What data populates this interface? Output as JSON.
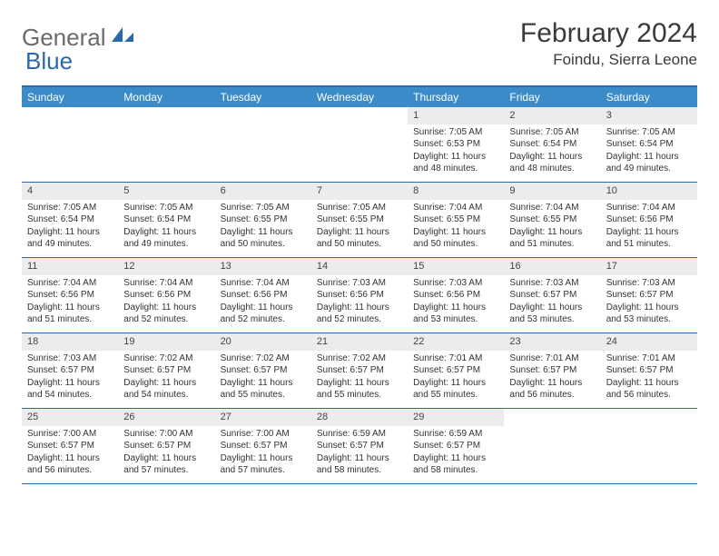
{
  "logo": {
    "text1": "General",
    "text2": "Blue",
    "color_gray": "#6b6b6b",
    "color_blue": "#2a6aa8"
  },
  "title": "February 2024",
  "location": "Foindu, Sierra Leone",
  "colors": {
    "header_bg": "#3b8bc8",
    "border": "#2a6aa8",
    "daynum_bg": "#ececec"
  },
  "weekdays": [
    "Sunday",
    "Monday",
    "Tuesday",
    "Wednesday",
    "Thursday",
    "Friday",
    "Saturday"
  ],
  "weeks": [
    [
      {
        "n": "",
        "sr": "",
        "ss": "",
        "dl": ""
      },
      {
        "n": "",
        "sr": "",
        "ss": "",
        "dl": ""
      },
      {
        "n": "",
        "sr": "",
        "ss": "",
        "dl": ""
      },
      {
        "n": "",
        "sr": "",
        "ss": "",
        "dl": ""
      },
      {
        "n": "1",
        "sr": "Sunrise: 7:05 AM",
        "ss": "Sunset: 6:53 PM",
        "dl": "Daylight: 11 hours and 48 minutes."
      },
      {
        "n": "2",
        "sr": "Sunrise: 7:05 AM",
        "ss": "Sunset: 6:54 PM",
        "dl": "Daylight: 11 hours and 48 minutes."
      },
      {
        "n": "3",
        "sr": "Sunrise: 7:05 AM",
        "ss": "Sunset: 6:54 PM",
        "dl": "Daylight: 11 hours and 49 minutes."
      }
    ],
    [
      {
        "n": "4",
        "sr": "Sunrise: 7:05 AM",
        "ss": "Sunset: 6:54 PM",
        "dl": "Daylight: 11 hours and 49 minutes."
      },
      {
        "n": "5",
        "sr": "Sunrise: 7:05 AM",
        "ss": "Sunset: 6:54 PM",
        "dl": "Daylight: 11 hours and 49 minutes."
      },
      {
        "n": "6",
        "sr": "Sunrise: 7:05 AM",
        "ss": "Sunset: 6:55 PM",
        "dl": "Daylight: 11 hours and 50 minutes."
      },
      {
        "n": "7",
        "sr": "Sunrise: 7:05 AM",
        "ss": "Sunset: 6:55 PM",
        "dl": "Daylight: 11 hours and 50 minutes."
      },
      {
        "n": "8",
        "sr": "Sunrise: 7:04 AM",
        "ss": "Sunset: 6:55 PM",
        "dl": "Daylight: 11 hours and 50 minutes."
      },
      {
        "n": "9",
        "sr": "Sunrise: 7:04 AM",
        "ss": "Sunset: 6:55 PM",
        "dl": "Daylight: 11 hours and 51 minutes."
      },
      {
        "n": "10",
        "sr": "Sunrise: 7:04 AM",
        "ss": "Sunset: 6:56 PM",
        "dl": "Daylight: 11 hours and 51 minutes."
      }
    ],
    [
      {
        "n": "11",
        "sr": "Sunrise: 7:04 AM",
        "ss": "Sunset: 6:56 PM",
        "dl": "Daylight: 11 hours and 51 minutes."
      },
      {
        "n": "12",
        "sr": "Sunrise: 7:04 AM",
        "ss": "Sunset: 6:56 PM",
        "dl": "Daylight: 11 hours and 52 minutes."
      },
      {
        "n": "13",
        "sr": "Sunrise: 7:04 AM",
        "ss": "Sunset: 6:56 PM",
        "dl": "Daylight: 11 hours and 52 minutes."
      },
      {
        "n": "14",
        "sr": "Sunrise: 7:03 AM",
        "ss": "Sunset: 6:56 PM",
        "dl": "Daylight: 11 hours and 52 minutes."
      },
      {
        "n": "15",
        "sr": "Sunrise: 7:03 AM",
        "ss": "Sunset: 6:56 PM",
        "dl": "Daylight: 11 hours and 53 minutes."
      },
      {
        "n": "16",
        "sr": "Sunrise: 7:03 AM",
        "ss": "Sunset: 6:57 PM",
        "dl": "Daylight: 11 hours and 53 minutes."
      },
      {
        "n": "17",
        "sr": "Sunrise: 7:03 AM",
        "ss": "Sunset: 6:57 PM",
        "dl": "Daylight: 11 hours and 53 minutes."
      }
    ],
    [
      {
        "n": "18",
        "sr": "Sunrise: 7:03 AM",
        "ss": "Sunset: 6:57 PM",
        "dl": "Daylight: 11 hours and 54 minutes."
      },
      {
        "n": "19",
        "sr": "Sunrise: 7:02 AM",
        "ss": "Sunset: 6:57 PM",
        "dl": "Daylight: 11 hours and 54 minutes."
      },
      {
        "n": "20",
        "sr": "Sunrise: 7:02 AM",
        "ss": "Sunset: 6:57 PM",
        "dl": "Daylight: 11 hours and 55 minutes."
      },
      {
        "n": "21",
        "sr": "Sunrise: 7:02 AM",
        "ss": "Sunset: 6:57 PM",
        "dl": "Daylight: 11 hours and 55 minutes."
      },
      {
        "n": "22",
        "sr": "Sunrise: 7:01 AM",
        "ss": "Sunset: 6:57 PM",
        "dl": "Daylight: 11 hours and 55 minutes."
      },
      {
        "n": "23",
        "sr": "Sunrise: 7:01 AM",
        "ss": "Sunset: 6:57 PM",
        "dl": "Daylight: 11 hours and 56 minutes."
      },
      {
        "n": "24",
        "sr": "Sunrise: 7:01 AM",
        "ss": "Sunset: 6:57 PM",
        "dl": "Daylight: 11 hours and 56 minutes."
      }
    ],
    [
      {
        "n": "25",
        "sr": "Sunrise: 7:00 AM",
        "ss": "Sunset: 6:57 PM",
        "dl": "Daylight: 11 hours and 56 minutes."
      },
      {
        "n": "26",
        "sr": "Sunrise: 7:00 AM",
        "ss": "Sunset: 6:57 PM",
        "dl": "Daylight: 11 hours and 57 minutes."
      },
      {
        "n": "27",
        "sr": "Sunrise: 7:00 AM",
        "ss": "Sunset: 6:57 PM",
        "dl": "Daylight: 11 hours and 57 minutes."
      },
      {
        "n": "28",
        "sr": "Sunrise: 6:59 AM",
        "ss": "Sunset: 6:57 PM",
        "dl": "Daylight: 11 hours and 58 minutes."
      },
      {
        "n": "29",
        "sr": "Sunrise: 6:59 AM",
        "ss": "Sunset: 6:57 PM",
        "dl": "Daylight: 11 hours and 58 minutes."
      },
      {
        "n": "",
        "sr": "",
        "ss": "",
        "dl": ""
      },
      {
        "n": "",
        "sr": "",
        "ss": "",
        "dl": ""
      }
    ]
  ]
}
